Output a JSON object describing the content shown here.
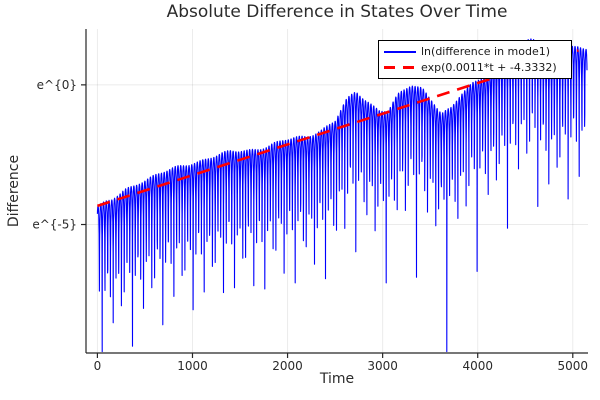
{
  "chart_data": {
    "type": "line",
    "title": "Absolute Difference in States Over Time",
    "xlabel": "Time",
    "ylabel": "Difference",
    "background_color": "#ffffff",
    "axis_color": "#262626",
    "grid_color": "#000000",
    "grid_opacity": 0.08,
    "text_color": "#2b2b2b",
    "legend_position": "top-right",
    "grid": true,
    "xlim": [
      -120,
      5160
    ],
    "ylim_ln": [
      -9.6,
      2.0
    ],
    "x_ticks": [
      0,
      1000,
      2000,
      3000,
      4000,
      5000
    ],
    "y_ticks": [
      {
        "label": "e^{0}",
        "ln": 0
      },
      {
        "label": "e^{-5}",
        "ln": -5
      }
    ],
    "series": [
      {
        "name": "ln(difference in mode1)",
        "color": "#0000ff",
        "style": "solid",
        "line_width": 1.1,
        "t_range": [
          0,
          5150
        ],
        "sample_step": 1.47,
        "oscillation_period": 29,
        "oscillation_phase": 21,
        "envelope_ln": [
          [
            0,
            -4.35
          ],
          [
            150,
            -4.15
          ],
          [
            300,
            -3.75
          ],
          [
            450,
            -3.45
          ],
          [
            600,
            -3.25
          ],
          [
            800,
            -3.02
          ],
          [
            1000,
            -2.78
          ],
          [
            1200,
            -2.58
          ],
          [
            1400,
            -2.42
          ],
          [
            1600,
            -2.32
          ],
          [
            1800,
            -2.18
          ],
          [
            2000,
            -1.98
          ],
          [
            2200,
            -1.82
          ],
          [
            2350,
            -1.62
          ],
          [
            2500,
            -1.3
          ],
          [
            2620,
            -0.58
          ],
          [
            2720,
            -0.24
          ],
          [
            2820,
            -0.52
          ],
          [
            2960,
            -0.88
          ],
          [
            3060,
            -0.92
          ],
          [
            3160,
            -0.4
          ],
          [
            3300,
            -0.02
          ],
          [
            3420,
            -0.12
          ],
          [
            3530,
            -0.55
          ],
          [
            3620,
            -1.03
          ],
          [
            3720,
            -0.85
          ],
          [
            3820,
            -0.4
          ],
          [
            3950,
            0.05
          ],
          [
            4100,
            0.45
          ],
          [
            4250,
            0.85
          ],
          [
            4400,
            1.25
          ],
          [
            4520,
            1.6
          ],
          [
            4580,
            1.72
          ],
          [
            4650,
            1.3
          ],
          [
            4750,
            1.0
          ],
          [
            4850,
            1.12
          ],
          [
            4950,
            1.28
          ],
          [
            5060,
            1.35
          ],
          [
            5150,
            1.25
          ]
        ]
      },
      {
        "name": "exp(0.0011*t + -4.3332)",
        "color": "#ff0000",
        "style": "dashed",
        "line_width": 2.6,
        "dash": "13 8",
        "slope": 0.0011,
        "intercept": -4.3332,
        "t_range": [
          0,
          5060
        ]
      }
    ]
  }
}
